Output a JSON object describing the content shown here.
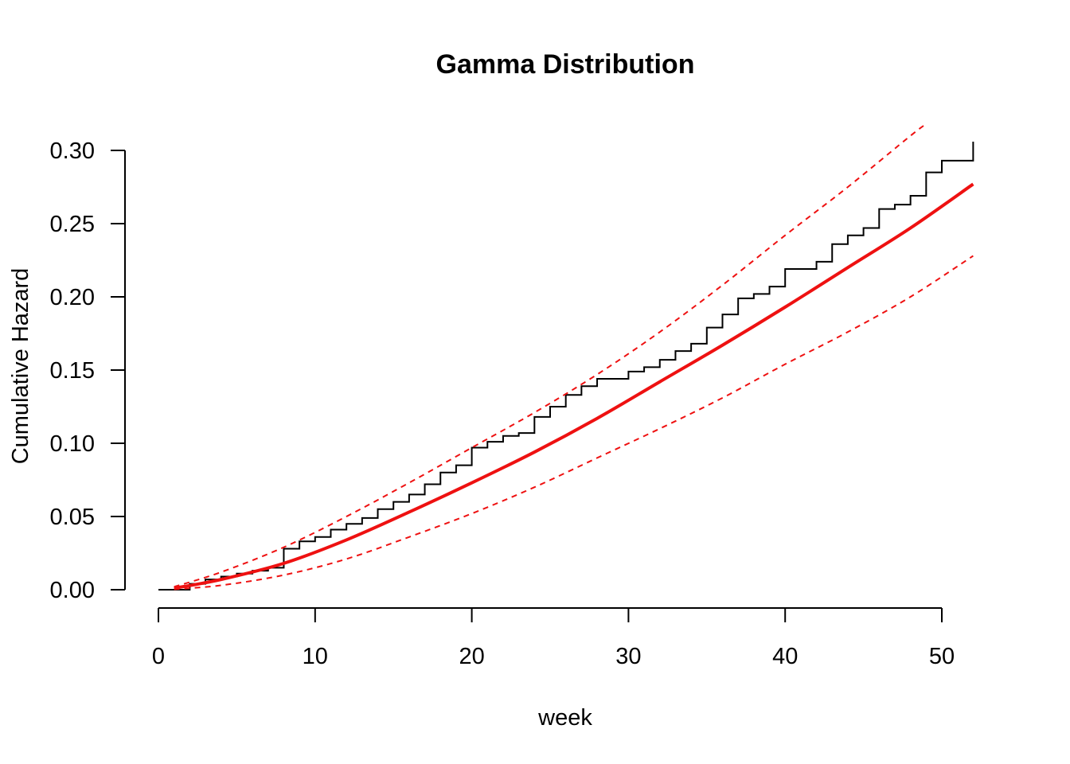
{
  "chart_data": {
    "type": "line",
    "title": "Gamma Distribution",
    "xlabel": "week",
    "ylabel": "Cumulative Hazard",
    "xlim": [
      0,
      52
    ],
    "ylim": [
      0,
      0.31
    ],
    "x_ticks": [
      0,
      10,
      20,
      30,
      40,
      50
    ],
    "y_ticks": [
      0.0,
      0.05,
      0.1,
      0.15,
      0.2,
      0.25,
      0.3
    ],
    "x_tick_labels": [
      "0",
      "10",
      "20",
      "30",
      "40",
      "50"
    ],
    "y_tick_labels": [
      "0.00",
      "0.05",
      "0.10",
      "0.15",
      "0.20",
      "0.25",
      "0.30"
    ],
    "grid": false,
    "series": [
      {
        "role": "empirical-step",
        "color": "#000000",
        "x": [
          0,
          1,
          2,
          3,
          4,
          5,
          6,
          7,
          8,
          9,
          10,
          11,
          12,
          13,
          14,
          15,
          16,
          17,
          18,
          19,
          20,
          21,
          22,
          23,
          24,
          25,
          26,
          27,
          28,
          29,
          30,
          31,
          32,
          33,
          34,
          35,
          36,
          37,
          38,
          39,
          40,
          41,
          42,
          43,
          44,
          45,
          46,
          47,
          48,
          49,
          50,
          51,
          52
        ],
        "y": [
          0.0,
          0.0,
          0.004,
          0.007,
          0.009,
          0.011,
          0.013,
          0.015,
          0.028,
          0.033,
          0.036,
          0.041,
          0.045,
          0.049,
          0.055,
          0.06,
          0.065,
          0.072,
          0.08,
          0.085,
          0.097,
          0.101,
          0.105,
          0.107,
          0.118,
          0.125,
          0.133,
          0.139,
          0.144,
          0.144,
          0.149,
          0.152,
          0.157,
          0.163,
          0.168,
          0.179,
          0.188,
          0.199,
          0.202,
          0.207,
          0.219,
          0.219,
          0.224,
          0.236,
          0.242,
          0.247,
          0.26,
          0.263,
          0.269,
          0.285,
          0.293,
          0.293,
          0.306
        ]
      },
      {
        "role": "fitted",
        "color": "#ee1111",
        "x": [
          1,
          4,
          8,
          12,
          16,
          20,
          24,
          28,
          32,
          36,
          40,
          44,
          48,
          52
        ],
        "y": [
          0.001,
          0.007,
          0.018,
          0.034,
          0.053,
          0.073,
          0.094,
          0.117,
          0.142,
          0.167,
          0.193,
          0.22,
          0.247,
          0.277
        ]
      },
      {
        "role": "upper-ci",
        "color": "#ee1111",
        "x": [
          1,
          4,
          8,
          12,
          16,
          20,
          24,
          28,
          32,
          36,
          40,
          44,
          48,
          49
        ],
        "y": [
          0.002,
          0.012,
          0.029,
          0.05,
          0.073,
          0.097,
          0.121,
          0.147,
          0.176,
          0.208,
          0.242,
          0.275,
          0.31,
          0.318
        ]
      },
      {
        "role": "lower-ci",
        "color": "#ee1111",
        "x": [
          1,
          4,
          8,
          12,
          16,
          20,
          24,
          28,
          32,
          36,
          40,
          44,
          48,
          52
        ],
        "y": [
          0.0003,
          0.003,
          0.01,
          0.021,
          0.036,
          0.052,
          0.07,
          0.09,
          0.11,
          0.131,
          0.154,
          0.176,
          0.2,
          0.228
        ]
      }
    ]
  }
}
